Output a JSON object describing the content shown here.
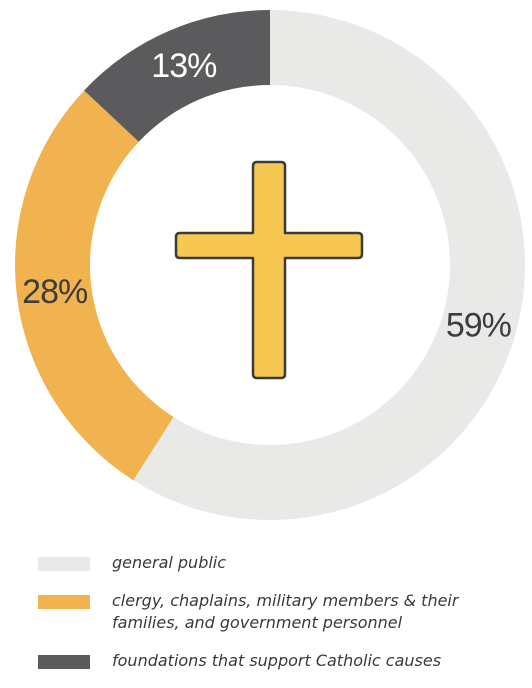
{
  "chart_data": {
    "type": "pie",
    "style": "donut",
    "title": "",
    "categories": [
      "general public",
      "clergy, chaplains, military members & their families, and government personnel",
      "foundations that support Catholic causes"
    ],
    "values": [
      59,
      28,
      13
    ],
    "value_labels": [
      "59%",
      "28%",
      "13%"
    ],
    "colors": [
      "#e9e9e8",
      "#f0b34f",
      "#5b5b5d"
    ],
    "center_icon": "cross-icon",
    "center_icon_color": "#f7c851",
    "legend_position": "bottom"
  },
  "legend": {
    "items": [
      {
        "line1": "general public",
        "line2": "",
        "color": "#e9e9e8"
      },
      {
        "line1": "clergy, chaplains, military members & their",
        "line2": "families, and government personnel",
        "color": "#f0b34f"
      },
      {
        "line1": "foundations that support Catholic causes",
        "line2": "",
        "color": "#5b5b5d"
      }
    ]
  }
}
